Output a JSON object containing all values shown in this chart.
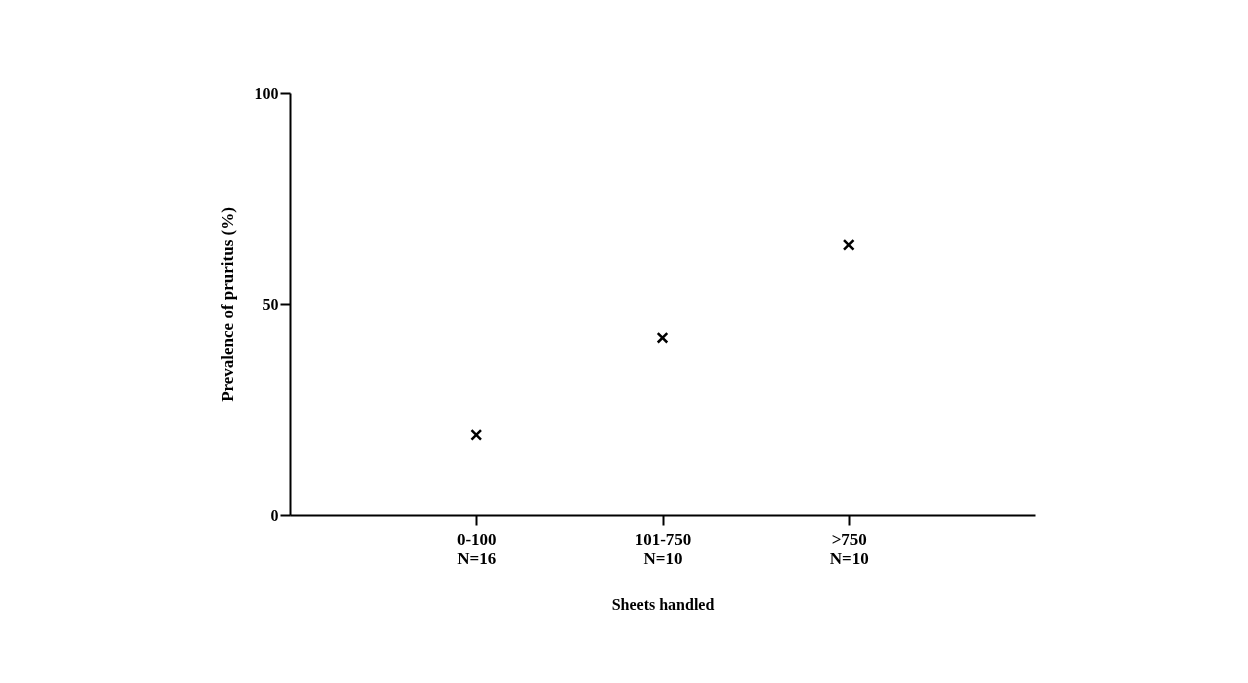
{
  "chart_data": {
    "type": "scatter",
    "xlabel": "Sheets handled",
    "ylabel": "Prevalence of pruritus (%)",
    "categories": [
      "0-100\nN=16",
      "101-750\nN=10",
      ">750\nN=10"
    ],
    "series": [
      {
        "color": "#000000",
        "values": [
          19,
          42,
          64
        ]
      }
    ],
    "ylim": [
      0,
      100
    ],
    "yticks": [
      0,
      50,
      100
    ],
    "grid": false,
    "marker": "cross"
  }
}
